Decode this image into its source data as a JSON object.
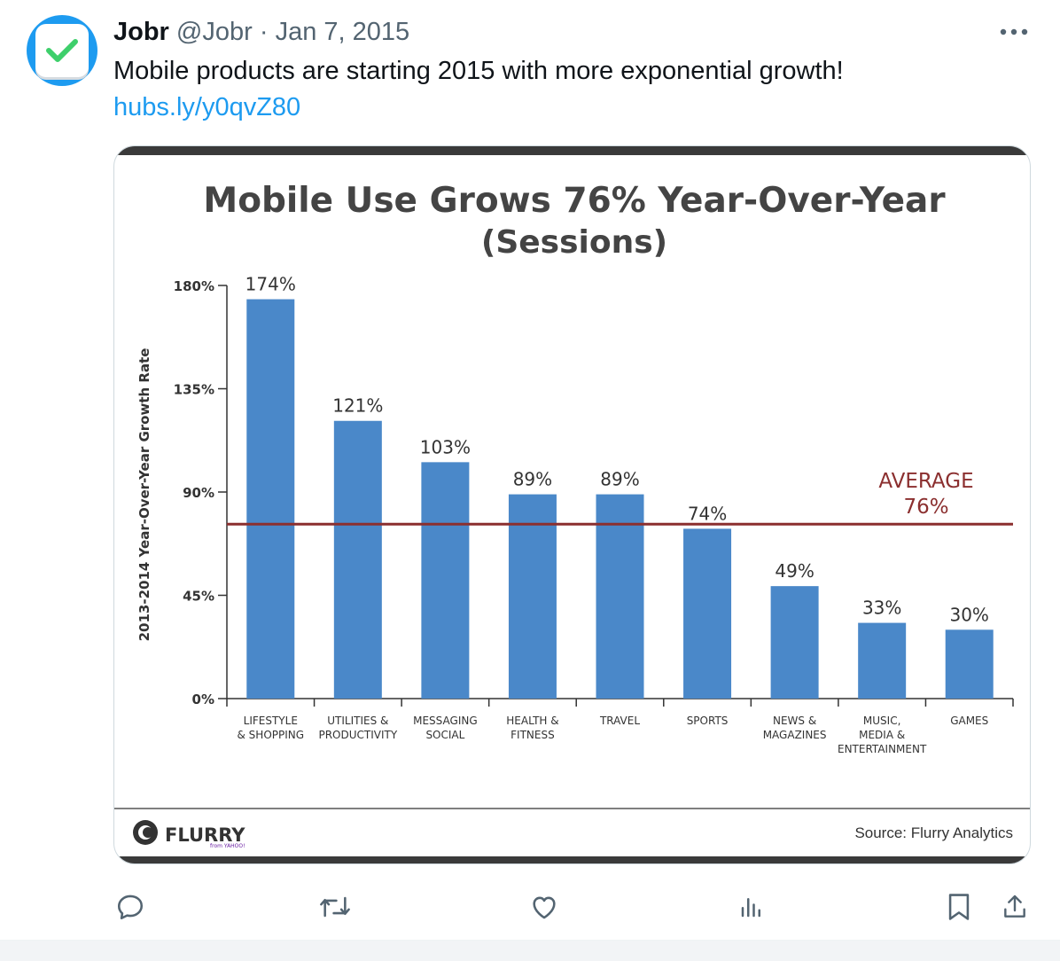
{
  "tweet": {
    "author_name": "Jobr",
    "handle": "@Jobr",
    "separator": "·",
    "date": "Jan 7, 2015",
    "text": "Mobile products are starting 2015 with more exponential growth!",
    "link": "hubs.ly/y0qvZ80"
  },
  "icons": {
    "avatar": "checkmark-icon",
    "more": "more-icon",
    "reply": "reply-icon",
    "retweet": "retweet-icon",
    "like": "like-icon",
    "views": "views-icon",
    "bookmark": "bookmark-icon",
    "share": "share-icon"
  },
  "colors": {
    "bar": "#4a88c9",
    "average_line": "#8b2f2f",
    "link": "#1d9bf0",
    "checkmark": "#3ecf6b"
  },
  "chart_data": {
    "type": "bar",
    "title": "Mobile Use Grows 76% Year-Over-Year",
    "subtitle": "(Sessions)",
    "ylabel": "2013-2014 Year-Over-Year Growth Rate",
    "xlabel": "",
    "ylim": [
      0,
      180
    ],
    "yticks": [
      0,
      45,
      90,
      135,
      180
    ],
    "ytick_labels": [
      "0%",
      "45%",
      "90%",
      "135%",
      "180%"
    ],
    "categories": [
      [
        "LIFESTYLE",
        "& SHOPPING"
      ],
      [
        "UTILITIES &",
        "PRODUCTIVITY"
      ],
      [
        "MESSAGING",
        "SOCIAL"
      ],
      [
        "HEALTH &",
        "FITNESS"
      ],
      [
        "TRAVEL"
      ],
      [
        "SPORTS"
      ],
      [
        "NEWS &",
        "MAGAZINES"
      ],
      [
        "MUSIC,",
        "MEDIA &",
        "ENTERTAINMENT"
      ],
      [
        "GAMES"
      ]
    ],
    "values": [
      174,
      121,
      103,
      89,
      89,
      74,
      49,
      33,
      30
    ],
    "value_labels": [
      "174%",
      "121%",
      "103%",
      "89%",
      "89%",
      "74%",
      "49%",
      "33%",
      "30%"
    ],
    "average": {
      "value": 76,
      "label_line1": "AVERAGE",
      "label_line2": "76%"
    },
    "grid": false,
    "footer_brand": "FLURRY",
    "footer_brand_sub": "from YAHOO!",
    "source": "Source: Flurry Analytics"
  }
}
